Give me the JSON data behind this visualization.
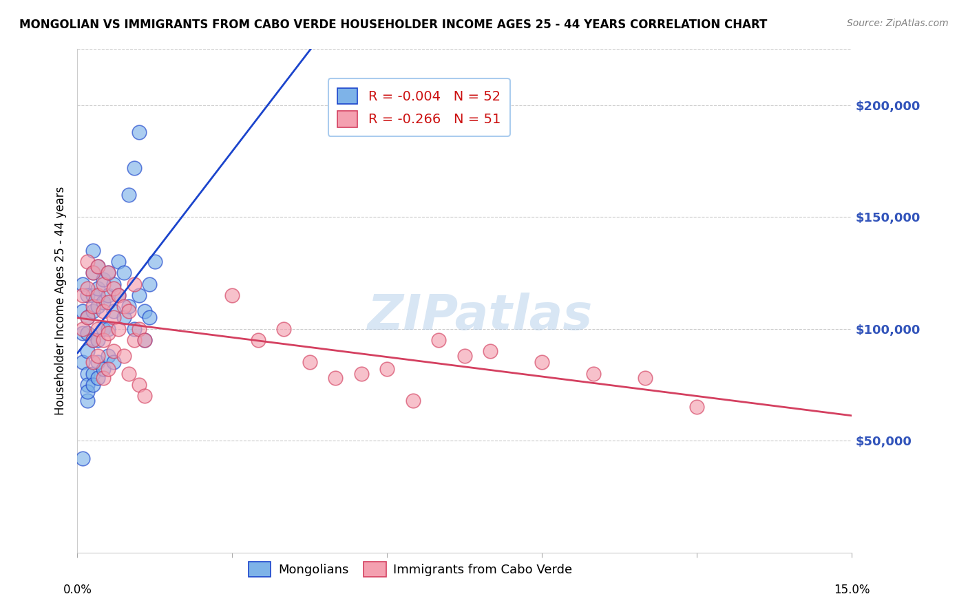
{
  "title": "MONGOLIAN VS IMMIGRANTS FROM CABO VERDE HOUSEHOLDER INCOME AGES 25 - 44 YEARS CORRELATION CHART",
  "source": "Source: ZipAtlas.com",
  "ylabel": "Householder Income Ages 25 - 44 years",
  "xmin": 0.0,
  "xmax": 0.15,
  "ymin": 0,
  "ymax": 225000,
  "yticks": [
    50000,
    100000,
    150000,
    200000
  ],
  "ytick_labels": [
    "$50,000",
    "$100,000",
    "$150,000",
    "$200,000"
  ],
  "R_mongolian": -0.004,
  "N_mongolian": 52,
  "R_caboverde": -0.266,
  "N_caboverde": 51,
  "color_mongolian": "#7EB3E8",
  "color_caboverde": "#F4A0B0",
  "line_mongolian_color": "#1B44CC",
  "line_caboverde_color": "#D44060",
  "watermark": "ZIPatlas",
  "mongolian_x": [
    0.001,
    0.001,
    0.001,
    0.001,
    0.001,
    0.002,
    0.002,
    0.002,
    0.002,
    0.002,
    0.002,
    0.002,
    0.002,
    0.003,
    0.003,
    0.003,
    0.003,
    0.003,
    0.003,
    0.003,
    0.004,
    0.004,
    0.004,
    0.004,
    0.004,
    0.004,
    0.005,
    0.005,
    0.005,
    0.005,
    0.006,
    0.006,
    0.006,
    0.006,
    0.007,
    0.007,
    0.007,
    0.008,
    0.008,
    0.009,
    0.009,
    0.01,
    0.01,
    0.011,
    0.011,
    0.012,
    0.012,
    0.013,
    0.013,
    0.014,
    0.014,
    0.015
  ],
  "mongolian_y": [
    108000,
    120000,
    98000,
    85000,
    42000,
    115000,
    105000,
    98000,
    90000,
    80000,
    75000,
    68000,
    72000,
    135000,
    125000,
    115000,
    108000,
    95000,
    80000,
    75000,
    128000,
    118000,
    110000,
    95000,
    85000,
    78000,
    122000,
    112000,
    100000,
    82000,
    125000,
    115000,
    100000,
    88000,
    120000,
    108000,
    85000,
    130000,
    115000,
    125000,
    105000,
    160000,
    110000,
    172000,
    100000,
    188000,
    115000,
    108000,
    95000,
    120000,
    105000,
    130000
  ],
  "caboverde_x": [
    0.001,
    0.001,
    0.002,
    0.002,
    0.002,
    0.003,
    0.003,
    0.003,
    0.003,
    0.004,
    0.004,
    0.004,
    0.004,
    0.005,
    0.005,
    0.005,
    0.005,
    0.006,
    0.006,
    0.006,
    0.006,
    0.007,
    0.007,
    0.007,
    0.008,
    0.008,
    0.009,
    0.009,
    0.01,
    0.01,
    0.011,
    0.011,
    0.012,
    0.012,
    0.013,
    0.013,
    0.03,
    0.035,
    0.04,
    0.045,
    0.05,
    0.055,
    0.06,
    0.065,
    0.07,
    0.075,
    0.08,
    0.09,
    0.1,
    0.11,
    0.12
  ],
  "caboverde_y": [
    115000,
    100000,
    130000,
    118000,
    105000,
    125000,
    110000,
    95000,
    85000,
    128000,
    115000,
    100000,
    88000,
    120000,
    108000,
    95000,
    78000,
    125000,
    112000,
    98000,
    82000,
    118000,
    105000,
    90000,
    115000,
    100000,
    110000,
    88000,
    108000,
    80000,
    95000,
    120000,
    100000,
    75000,
    95000,
    70000,
    115000,
    95000,
    100000,
    85000,
    78000,
    80000,
    82000,
    68000,
    95000,
    88000,
    90000,
    85000,
    80000,
    78000,
    65000
  ]
}
